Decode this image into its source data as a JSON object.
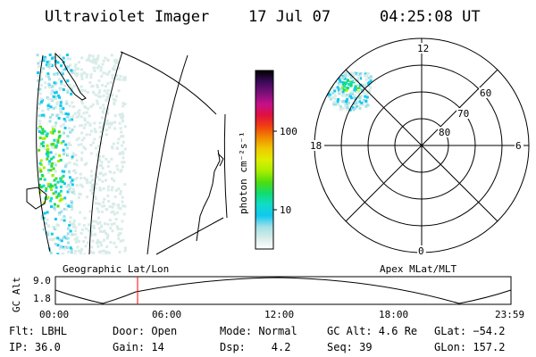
{
  "header": {
    "title": "Ultraviolet Imager",
    "date": "17 Jul 07",
    "time": "04:25:08 UT"
  },
  "colorbar": {
    "unit_label": "photon cm⁻²s⁻¹",
    "ticks": [
      "100",
      "10"
    ],
    "scale": "log",
    "colors": [
      "#000000",
      "#3a0a5a",
      "#7a0f78",
      "#c4108a",
      "#e01040",
      "#f04010",
      "#f08a00",
      "#f0c800",
      "#e0ee00",
      "#a8ee00",
      "#50dc10",
      "#10dc70",
      "#10dcc8",
      "#10c8f0",
      "#a0e0e8",
      "#d8ece8",
      "#ffffff"
    ]
  },
  "polar_plot": {
    "top_label": "12",
    "bottom_label": "0",
    "left_label": "18",
    "right_label": "6",
    "lat_labels": [
      "60",
      "70",
      "80"
    ]
  },
  "geo_panel": {
    "caption": "Geographic Lat/Lon"
  },
  "apex_caption": "Apex MLat/MLT",
  "altitude_plot": {
    "ylabel": "GC Alt",
    "ytop": "9.0",
    "ybottom": "1.8",
    "xticks": [
      "00:00",
      "06:00",
      "12:00",
      "18:00",
      "23:59"
    ],
    "cursor_color": "#ff0000"
  },
  "info": {
    "filter": "Flt: LBHL",
    "ip": "IP: 36.0",
    "door": "Door: Open",
    "gain": "Gain: 14",
    "mode": "Mode: Normal",
    "dsp": "Dsp:    4.2",
    "gc_alt": "GC Alt: 4.6 Re",
    "seq": "Seq: 39",
    "glat": "GLat: −54.2",
    "glon": "GLon: 157.2"
  }
}
